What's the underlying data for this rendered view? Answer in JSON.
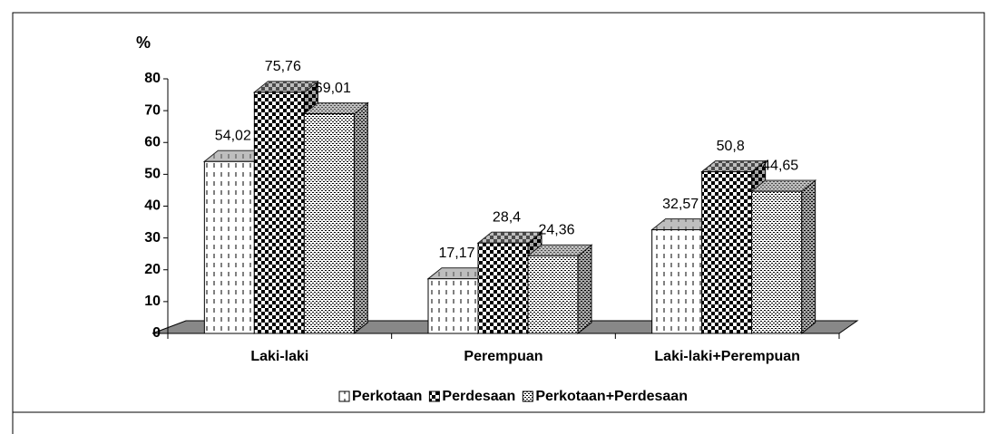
{
  "chart_data": {
    "type": "bar3d",
    "y_label": "%",
    "categories": [
      "Laki-laki",
      "Perempuan",
      "Laki-laki+Perempuan"
    ],
    "series": [
      {
        "name": "Perkotaan",
        "values": [
          54.02,
          17.17,
          32.57
        ],
        "value_labels": [
          "54,02",
          "17,17",
          "32,57"
        ]
      },
      {
        "name": "Perdesaan",
        "values": [
          75.76,
          28.4,
          50.8
        ],
        "value_labels": [
          "75,76",
          "28,4",
          "50,8"
        ]
      },
      {
        "name": "Perkotaan+Perdesaan",
        "values": [
          69.01,
          24.36,
          44.65
        ],
        "value_labels": [
          "69,01",
          "24,36",
          "44,65"
        ]
      }
    ],
    "ylim": [
      0,
      80
    ],
    "yticks": [
      0,
      10,
      20,
      30,
      40,
      50,
      60,
      70,
      80
    ]
  }
}
